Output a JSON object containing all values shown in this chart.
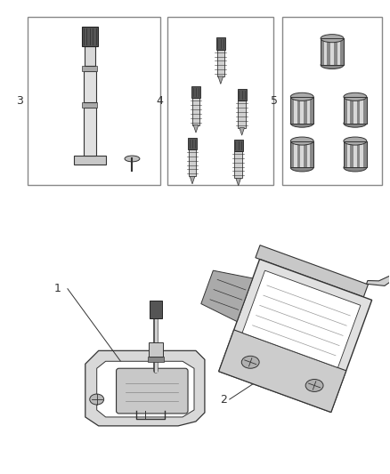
{
  "background_color": "#ffffff",
  "line_color": "#333333",
  "gray_light": "#e0e0e0",
  "gray_mid": "#aaaaaa",
  "gray_dark": "#666666",
  "box_edge": "#999999",
  "fig_width": 4.38,
  "fig_height": 5.33,
  "dpi": 100
}
